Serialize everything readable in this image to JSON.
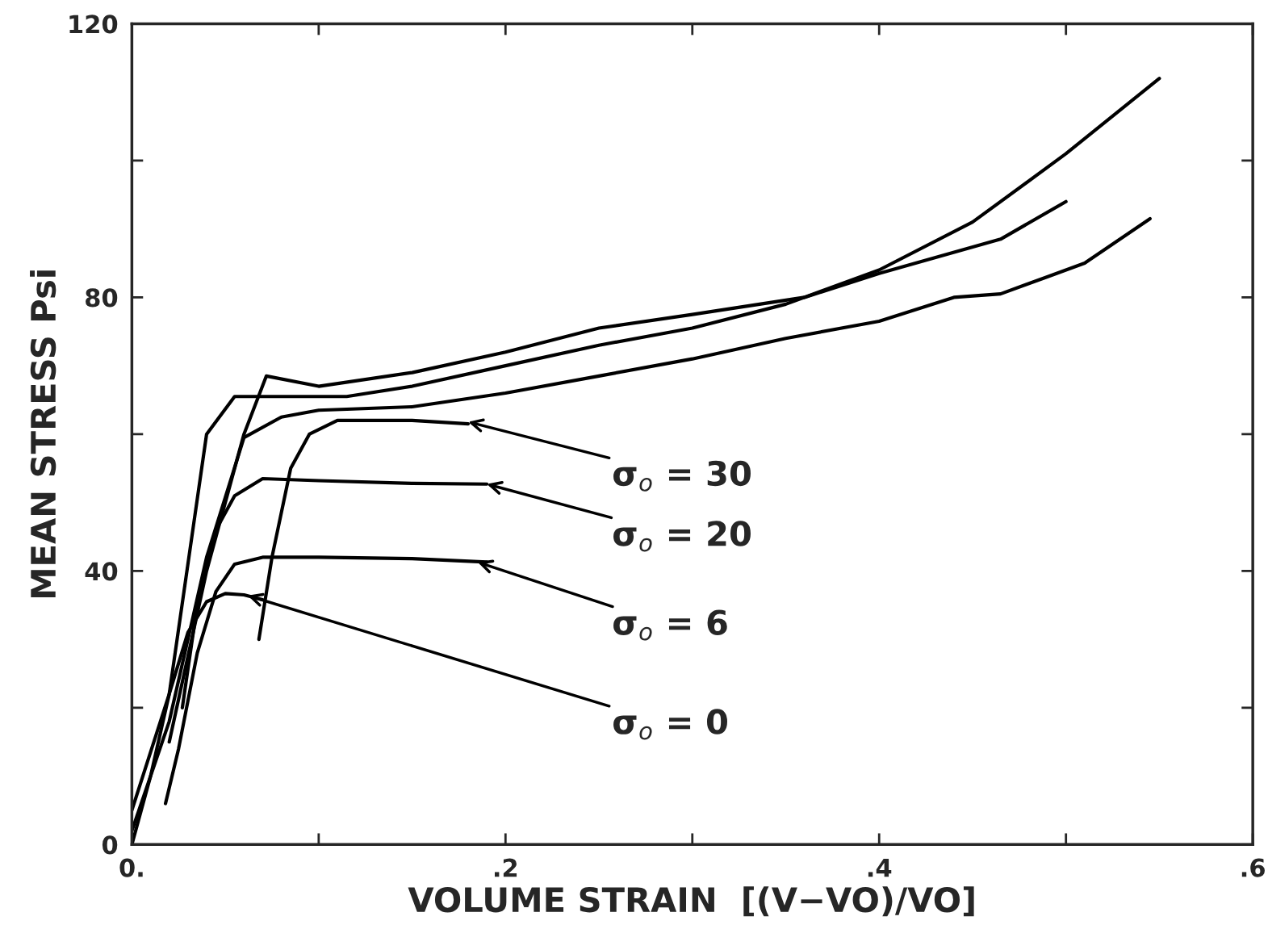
{
  "chart_data": {
    "type": "line",
    "xlabel": "VOLUME STRAIN  [(V−VO)/VO]",
    "ylabel": "MEAN STRESS Psi",
    "xlim": [
      0,
      0.6
    ],
    "ylim": [
      0,
      120
    ],
    "xticks": [
      {
        "value": 0,
        "label": "0."
      },
      {
        "value": 0.1,
        "label": null
      },
      {
        "value": 0.2,
        "label": ".2"
      },
      {
        "value": 0.3,
        "label": null
      },
      {
        "value": 0.4,
        "label": ".4"
      },
      {
        "value": 0.5,
        "label": null
      },
      {
        "value": 0.6,
        "label": ".6"
      }
    ],
    "yticks": [
      0,
      {
        "value": 20,
        "label": null
      },
      40,
      {
        "value": 60,
        "label": null
      },
      80,
      {
        "value": 100,
        "label": null
      },
      120
    ],
    "grid": false,
    "marker": "none",
    "line_style": "solid",
    "series": [
      {
        "color": "#000000",
        "x": [
          0,
          0.01,
          0.02,
          0.03,
          0.04,
          0.05,
          0.06,
          0.07
        ],
        "values": [
          0,
          10,
          22,
          31,
          35.5,
          36.7,
          36.5,
          35.8
        ]
      },
      {
        "color": "#000000",
        "x": [
          0.018,
          0.025,
          0.035,
          0.045,
          0.055,
          0.07,
          0.1,
          0.15,
          0.19
        ],
        "values": [
          6,
          14,
          28,
          37,
          41,
          42,
          42,
          41.8,
          41.3
        ]
      },
      {
        "color": "#000000",
        "x": [
          0.027,
          0.035,
          0.045,
          0.055,
          0.07,
          0.1,
          0.15,
          0.19
        ],
        "values": [
          20,
          35,
          46,
          51,
          53.5,
          53.2,
          52.8,
          52.7
        ]
      },
      {
        "color": "#000000",
        "x": [
          0.068,
          0.075,
          0.085,
          0.095,
          0.11,
          0.15,
          0.18
        ],
        "values": [
          30,
          42,
          55,
          60,
          62,
          62,
          61.5
        ]
      },
      {
        "color": "#000000",
        "x": [
          0,
          0.02,
          0.04,
          0.055,
          0.115,
          0.15,
          0.2,
          0.25,
          0.3,
          0.35,
          0.4,
          0.45,
          0.5,
          0.55
        ],
        "values": [
          5,
          22,
          60,
          65.5,
          65.5,
          67,
          70,
          73,
          75.5,
          79,
          84,
          91,
          101,
          112
        ]
      },
      {
        "color": "#000000",
        "x": [
          0.02,
          0.04,
          0.06,
          0.072,
          0.1,
          0.15,
          0.2,
          0.25,
          0.3,
          0.36,
          0.4,
          0.465,
          0.5
        ],
        "values": [
          15,
          40,
          60,
          68.5,
          67,
          69,
          72,
          75.5,
          77.5,
          80,
          83.5,
          88.5,
          94
        ]
      },
      {
        "color": "#000000",
        "x": [
          0,
          0.02,
          0.04,
          0.06,
          0.08,
          0.1,
          0.15,
          0.2,
          0.25,
          0.3,
          0.35,
          0.4,
          0.44,
          0.465,
          0.49,
          0.51,
          0.545
        ],
        "values": [
          2,
          18,
          42,
          59.5,
          62.5,
          63.5,
          64,
          66,
          68.5,
          71,
          74,
          76.5,
          80,
          80.5,
          83,
          85,
          91.5
        ]
      }
    ],
    "annotations": [
      {
        "text": "σ$_{o}$ = 30",
        "x": 0.18,
        "y": 61.8
      },
      {
        "text": "σ$_{o}$ = 20",
        "x": 0.19,
        "y": 52.7
      },
      {
        "text": "σ$_{o}$ = 6",
        "x": 0.185,
        "y": 41.3
      },
      {
        "text": "σ$_{o}$ = 0",
        "x": 0.062,
        "y": 36.4
      }
    ]
  }
}
